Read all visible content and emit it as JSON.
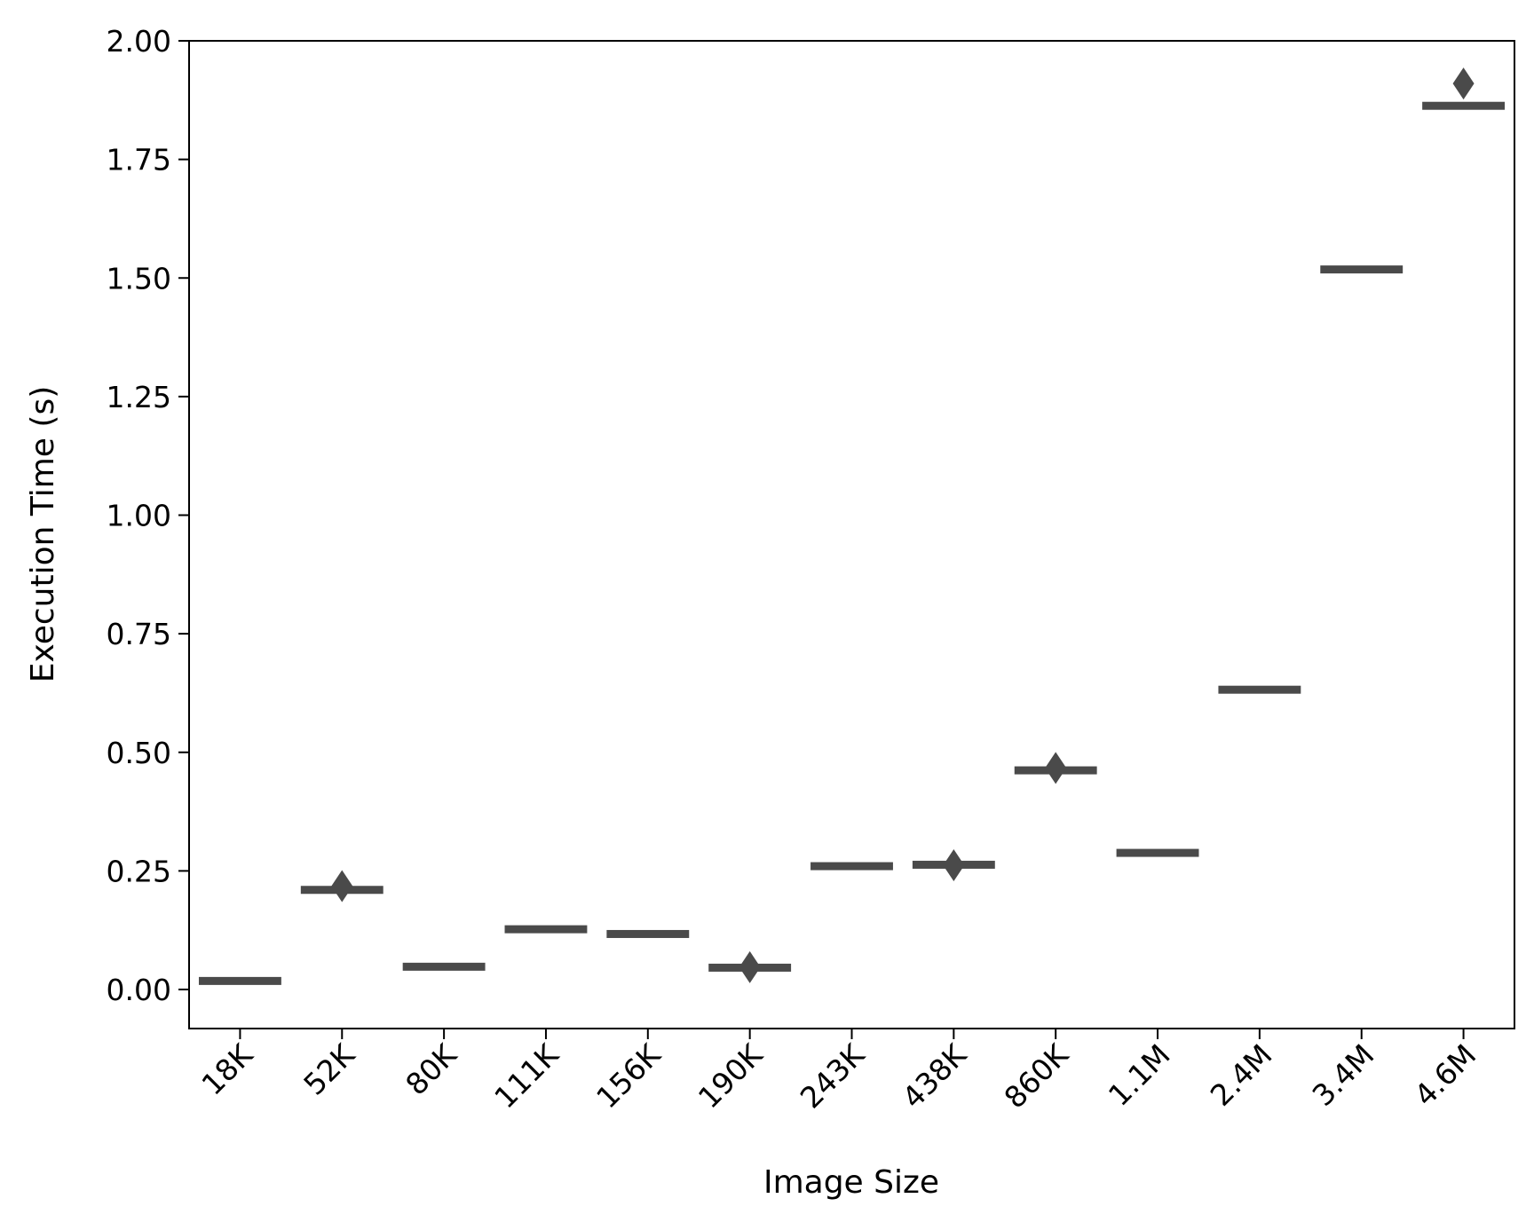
{
  "chart_data": {
    "type": "box",
    "title": "",
    "xlabel": "Image Size",
    "ylabel": "Execution Time (s)",
    "ylim": [
      -0.08,
      2.0
    ],
    "yticks": [
      "0.00",
      "0.25",
      "0.50",
      "0.75",
      "1.00",
      "1.25",
      "1.50",
      "1.75",
      "2.00"
    ],
    "grid": false,
    "color": "#4a4a4a",
    "categories": [
      "18K",
      "52K",
      "80K",
      "111K",
      "156K",
      "190K",
      "243K",
      "438K",
      "860K",
      "1.1M",
      "2.4M",
      "3.4M",
      "4.6M"
    ],
    "medians": [
      0.018,
      0.21,
      0.048,
      0.127,
      0.117,
      0.046,
      0.26,
      0.263,
      0.462,
      0.288,
      0.632,
      1.518,
      1.863
    ],
    "outliers": [
      {
        "category": "52K",
        "value": 0.218
      },
      {
        "category": "190K",
        "value": 0.047
      },
      {
        "category": "438K",
        "value": 0.262
      },
      {
        "category": "860K",
        "value": 0.467
      },
      {
        "category": "4.6M",
        "value": 1.91
      }
    ]
  }
}
